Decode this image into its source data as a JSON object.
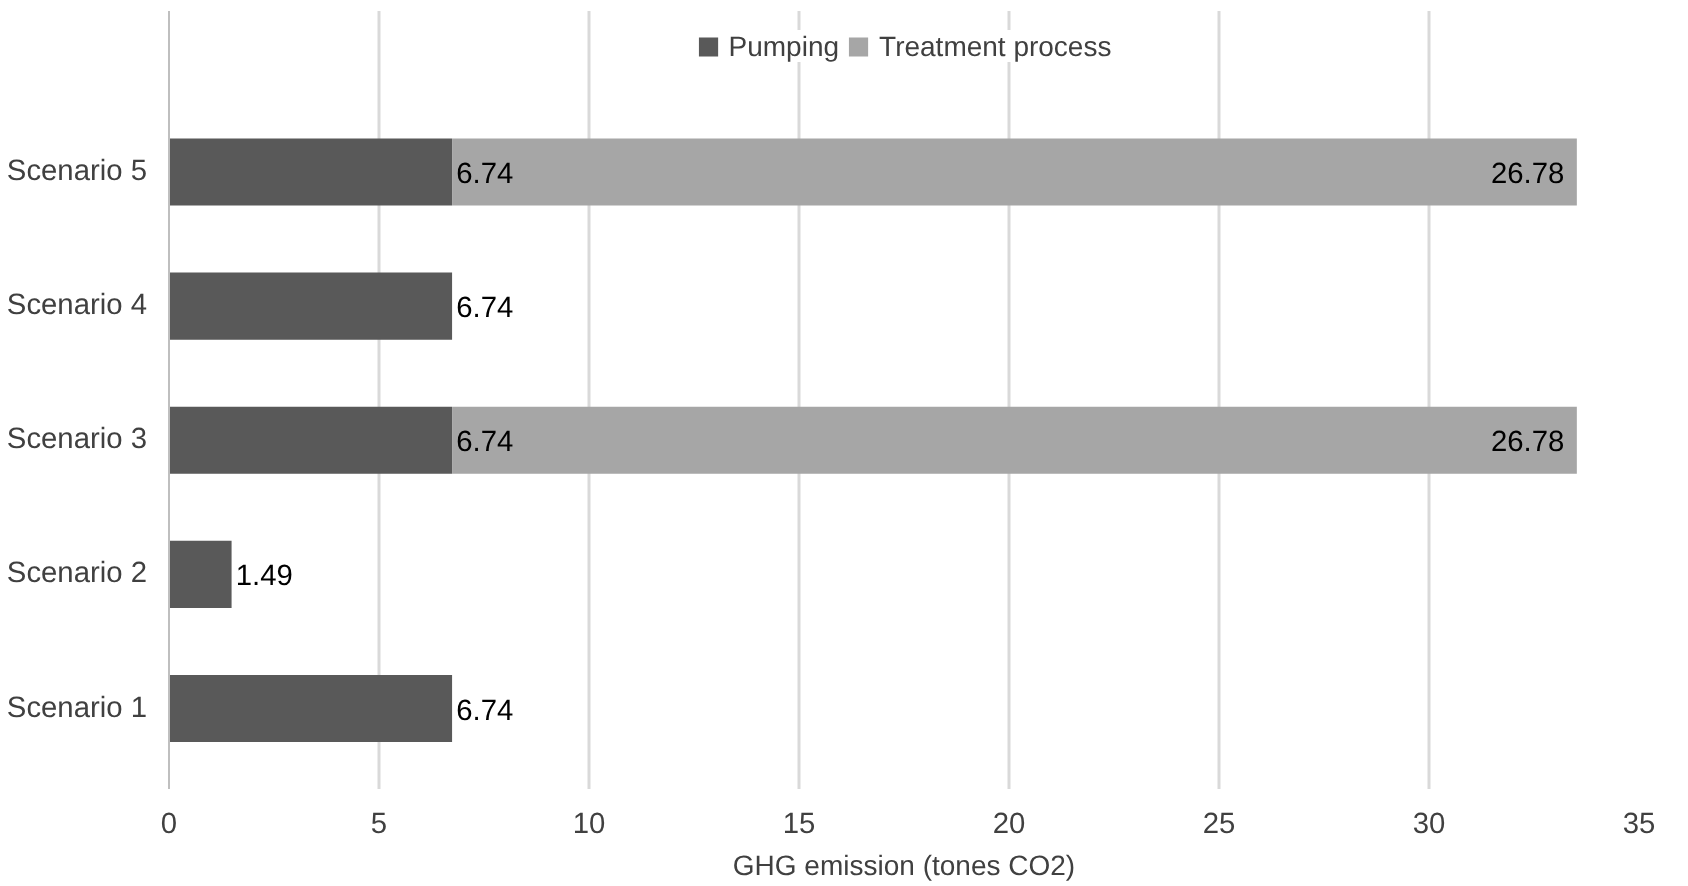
{
  "chart_data": {
    "type": "bar",
    "orientation": "horizontal",
    "stacked": true,
    "xlabel": "GHG emission (tones CO2)",
    "categories": [
      "Scenario 5",
      "Scenario 4",
      "Scenario 3",
      "Scenario 2",
      "Scenario 1"
    ],
    "series": [
      {
        "name": "Pumping",
        "color": "#595959",
        "values": [
          6.74,
          6.74,
          6.74,
          1.49,
          6.74
        ]
      },
      {
        "name": "Treatment process",
        "color": "#a6a6a6",
        "values": [
          26.78,
          null,
          26.78,
          null,
          null
        ]
      }
    ],
    "xlim": [
      0,
      35
    ],
    "xticks": [
      0,
      5,
      10,
      15,
      20,
      25,
      30,
      35
    ],
    "grid": "x",
    "legend": "top",
    "data_labels": true
  }
}
